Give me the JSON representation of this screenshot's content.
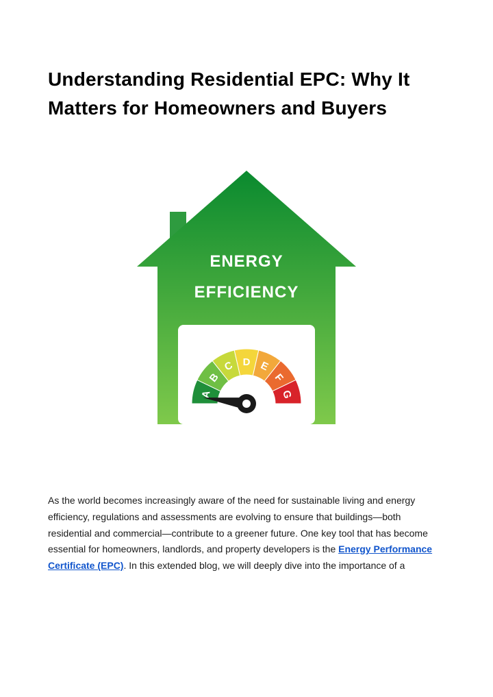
{
  "title": "Understanding Residential EPC: Why It Matters for Homeowners and Buyers",
  "graphic": {
    "house": {
      "gradient_top": "#0a8a2f",
      "gradient_bottom": "#7fc94b",
      "chimney_color": "#2e9b3f",
      "text_color": "#ffffff",
      "line1": "ENERGY",
      "line2": "EFFICIENCY",
      "title_fontsize": 24,
      "window_bg": "#ffffff"
    },
    "gauge": {
      "segments": [
        {
          "label": "A",
          "color": "#1f8f3a"
        },
        {
          "label": "B",
          "color": "#6fbf44"
        },
        {
          "label": "C",
          "color": "#c7d93b"
        },
        {
          "label": "D",
          "color": "#f4d63b"
        },
        {
          "label": "E",
          "color": "#f2a83b"
        },
        {
          "label": "F",
          "color": "#ea6a2f"
        },
        {
          "label": "G",
          "color": "#d8232a"
        }
      ],
      "label_color": "#ffffff",
      "label_fontsize": 15,
      "needle_color": "#1a1a1a",
      "hub_outer": "#1a1a1a",
      "hub_inner": "#ffffff",
      "background": "#ffffff"
    }
  },
  "paragraph": {
    "pre": "As the world becomes increasingly aware of the need for sustainable living and energy efficiency, regulations and assessments are evolving to ensure that buildings—both residential and commercial—contribute to a greener future. One key tool that has become essential for homeowners, landlords, and property developers is the ",
    "link_text": "Energy Performance Certificate (EPC)",
    "post": ". In this extended blog, we will deeply dive into the importance of a"
  },
  "colors": {
    "page_bg": "#ffffff",
    "text": "#000000",
    "body_text": "#1a1a1a",
    "link": "#1155cc"
  }
}
